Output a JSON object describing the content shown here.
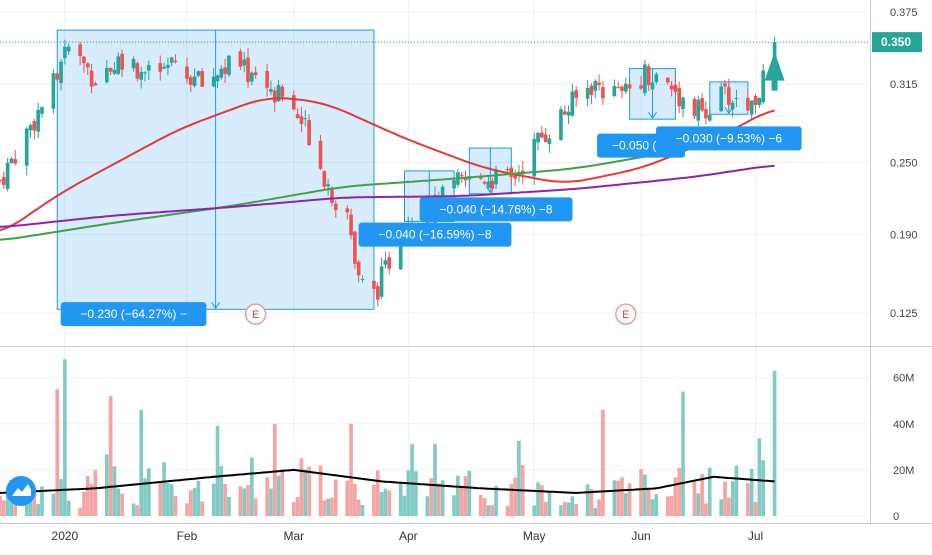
{
  "chart_data": {
    "type": "candlestick",
    "price_axis": {
      "ticks": [
        0.375,
        0.35,
        0.315,
        0.25,
        0.19,
        0.125
      ],
      "tick_labels": [
        "0.375",
        "0.350",
        "0.315",
        "0.250",
        "0.190",
        "0.125"
      ],
      "last_price_label": "0.350",
      "last_price": 0.35,
      "ylim": [
        0.1,
        0.385
      ]
    },
    "volume_axis": {
      "ticks": [
        0,
        20,
        40,
        60
      ],
      "tick_labels": [
        "0",
        "20M",
        "40M",
        "60M"
      ],
      "ylim": [
        0,
        72
      ]
    },
    "x_axis": {
      "labels": [
        {
          "label": "2020",
          "date": "2020-01-02"
        },
        {
          "label": "Feb",
          "date": "2020-02-03"
        },
        {
          "label": "Mar",
          "date": "2020-03-02"
        },
        {
          "label": "Apr",
          "date": "2020-04-01"
        },
        {
          "label": "May",
          "date": "2020-05-04"
        },
        {
          "label": "Jun",
          "date": "2020-06-01"
        },
        {
          "label": "Jul",
          "date": "2020-07-01"
        }
      ],
      "range": [
        "2019-12-16",
        "2020-07-31"
      ]
    },
    "price_anchors": [
      {
        "date": "2019-12-16",
        "value": 0.235
      },
      {
        "date": "2019-12-24",
        "value": 0.28
      },
      {
        "date": "2019-12-31",
        "value": 0.32
      },
      {
        "date": "2020-01-03",
        "value": 0.345
      },
      {
        "date": "2020-01-10",
        "value": 0.32
      },
      {
        "date": "2020-01-17",
        "value": 0.338
      },
      {
        "date": "2020-01-24",
        "value": 0.322
      },
      {
        "date": "2020-01-31",
        "value": 0.33
      },
      {
        "date": "2020-02-07",
        "value": 0.315
      },
      {
        "date": "2020-02-14",
        "value": 0.332
      },
      {
        "date": "2020-02-21",
        "value": 0.322
      },
      {
        "date": "2020-02-28",
        "value": 0.305
      },
      {
        "date": "2020-03-06",
        "value": 0.275
      },
      {
        "date": "2020-03-11",
        "value": 0.232
      },
      {
        "date": "2020-03-16",
        "value": 0.2
      },
      {
        "date": "2020-03-19",
        "value": 0.15
      },
      {
        "date": "2020-03-23",
        "value": 0.14
      },
      {
        "date": "2020-03-26",
        "value": 0.16
      },
      {
        "date": "2020-03-31",
        "value": 0.205
      },
      {
        "date": "2020-04-07",
        "value": 0.21
      },
      {
        "date": "2020-04-14",
        "value": 0.232
      },
      {
        "date": "2020-04-21",
        "value": 0.238
      },
      {
        "date": "2020-04-28",
        "value": 0.235
      },
      {
        "date": "2020-05-05",
        "value": 0.268
      },
      {
        "date": "2020-05-12",
        "value": 0.292
      },
      {
        "date": "2020-05-19",
        "value": 0.315
      },
      {
        "date": "2020-05-27",
        "value": 0.305
      },
      {
        "date": "2020-06-02",
        "value": 0.325
      },
      {
        "date": "2020-06-09",
        "value": 0.312
      },
      {
        "date": "2020-06-16",
        "value": 0.292
      },
      {
        "date": "2020-06-23",
        "value": 0.305
      },
      {
        "date": "2020-06-30",
        "value": 0.298
      },
      {
        "date": "2020-07-03",
        "value": 0.318
      },
      {
        "date": "2020-07-06",
        "value": 0.35
      }
    ],
    "moving_averages": [
      {
        "color": "#e53935",
        "points": [
          {
            "date": "2019-12-16",
            "value": 0.19
          },
          {
            "date": "2020-01-01",
            "value": 0.225
          },
          {
            "date": "2020-02-01",
            "value": 0.278
          },
          {
            "date": "2020-02-24",
            "value": 0.305
          },
          {
            "date": "2020-03-10",
            "value": 0.3
          },
          {
            "date": "2020-03-31",
            "value": 0.27
          },
          {
            "date": "2020-04-21",
            "value": 0.245
          },
          {
            "date": "2020-05-12",
            "value": 0.232
          },
          {
            "date": "2020-06-01",
            "value": 0.245
          },
          {
            "date": "2020-06-22",
            "value": 0.272
          },
          {
            "date": "2020-07-06",
            "value": 0.296
          }
        ]
      },
      {
        "color": "#43a047",
        "points": [
          {
            "date": "2019-12-16",
            "value": 0.185
          },
          {
            "date": "2020-01-15",
            "value": 0.2
          },
          {
            "date": "2020-02-15",
            "value": 0.214
          },
          {
            "date": "2020-03-15",
            "value": 0.23
          },
          {
            "date": "2020-04-15",
            "value": 0.237
          },
          {
            "date": "2020-05-15",
            "value": 0.245
          },
          {
            "date": "2020-06-15",
            "value": 0.262
          },
          {
            "date": "2020-07-06",
            "value": 0.268
          }
        ]
      },
      {
        "color": "#8e24aa",
        "points": [
          {
            "date": "2019-12-16",
            "value": 0.196
          },
          {
            "date": "2020-01-15",
            "value": 0.206
          },
          {
            "date": "2020-02-15",
            "value": 0.213
          },
          {
            "date": "2020-03-15",
            "value": 0.221
          },
          {
            "date": "2020-04-15",
            "value": 0.222
          },
          {
            "date": "2020-05-15",
            "value": 0.228
          },
          {
            "date": "2020-06-15",
            "value": 0.238
          },
          {
            "date": "2020-07-06",
            "value": 0.248
          }
        ]
      }
    ],
    "volume_ma": {
      "color": "#000000",
      "points": [
        {
          "date": "2019-12-16",
          "value": 10
        },
        {
          "date": "2020-01-10",
          "value": 12
        },
        {
          "date": "2020-02-10",
          "value": 17
        },
        {
          "date": "2020-03-02",
          "value": 20
        },
        {
          "date": "2020-03-25",
          "value": 15
        },
        {
          "date": "2020-04-20",
          "value": 12
        },
        {
          "date": "2020-05-15",
          "value": 10
        },
        {
          "date": "2020-06-05",
          "value": 12
        },
        {
          "date": "2020-06-20",
          "value": 17
        },
        {
          "date": "2020-07-06",
          "value": 15
        }
      ]
    },
    "volume_spikes": [
      {
        "date": "2020-01-02",
        "value": 68
      },
      {
        "date": "2019-12-31",
        "value": 55
      },
      {
        "date": "2020-01-14",
        "value": 52
      },
      {
        "date": "2020-01-22",
        "value": 46
      },
      {
        "date": "2020-02-26",
        "value": 40
      },
      {
        "date": "2020-03-17",
        "value": 40
      },
      {
        "date": "2020-05-22",
        "value": 46
      },
      {
        "date": "2020-06-12",
        "value": 54
      },
      {
        "date": "2020-07-06",
        "value": 63
      }
    ],
    "measure_boxes": [
      {
        "from_date": "2019-12-31",
        "to_date": "2020-03-23",
        "from_price": 0.36,
        "to_price": 0.128,
        "label": "−0.230 (−64.27%) −",
        "label_date": "2020-01-20",
        "label_price": 0.124
      },
      {
        "from_date": "2020-03-31",
        "to_date": "2020-04-13",
        "from_price": 0.243,
        "to_price": 0.201,
        "label": "−0.040 (−16.59%) −8",
        "label_date": "2020-04-08",
        "label_price": 0.19
      },
      {
        "from_date": "2020-04-17",
        "to_date": "2020-04-28",
        "from_price": 0.262,
        "to_price": 0.224,
        "label": "−0.040 (−14.76%) −8",
        "label_date": "2020-04-24",
        "label_price": 0.211
      },
      {
        "from_date": "2020-05-29",
        "to_date": "2020-06-10",
        "from_price": 0.328,
        "to_price": 0.286,
        "label": "−0.050 (−1",
        "label_date": "2020-06-01",
        "label_price": 0.264
      },
      {
        "from_date": "2020-06-19",
        "to_date": "2020-06-29",
        "from_price": 0.317,
        "to_price": 0.29,
        "label": "−0.030 (−9.53%) −6",
        "label_date": "2020-06-24",
        "label_price": 0.27
      }
    ],
    "earnings_markers": [
      {
        "date": "2020-02-21",
        "label": "E"
      },
      {
        "date": "2020-05-28",
        "label": "E"
      }
    ],
    "grid": true,
    "colors": {
      "up": "#26a69a",
      "down": "#ef5350",
      "up_volume": "#80cbc4",
      "down_volume": "#f5a3a3",
      "measure": "#2196f3",
      "last_price": "#26a69a",
      "arrow": "#26a69a"
    }
  }
}
